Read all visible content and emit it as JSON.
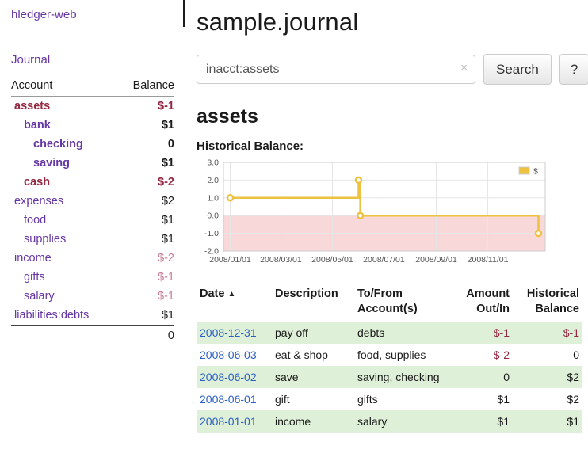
{
  "app": {
    "title": "hledger-web",
    "nav_journal": "Journal"
  },
  "colors": {
    "purple": "#6636a3",
    "blue": "#2a5fc4",
    "neg_strong": "#942741",
    "neg_light": "#c57f95",
    "row_green": "#dff0d8"
  },
  "sidebar": {
    "columns": {
      "account": "Account",
      "balance": "Balance"
    },
    "accounts": [
      {
        "name": "assets",
        "balance": "$-1",
        "depth": 1,
        "bold": true,
        "name_neg": true,
        "bal_neg": "strong"
      },
      {
        "name": "bank",
        "balance": "$1",
        "depth": 2,
        "bold": true,
        "name_neg": false,
        "bal_neg": "none"
      },
      {
        "name": "checking",
        "balance": "0",
        "depth": 3,
        "bold": true,
        "name_neg": false,
        "bal_neg": "none"
      },
      {
        "name": "saving",
        "balance": "$1",
        "depth": 3,
        "bold": true,
        "name_neg": false,
        "bal_neg": "none"
      },
      {
        "name": "cash",
        "balance": "$-2",
        "depth": 2,
        "bold": true,
        "name_neg": true,
        "bal_neg": "strong"
      },
      {
        "name": "expenses",
        "balance": "$2",
        "depth": 1,
        "bold": false,
        "name_neg": false,
        "bal_neg": "none"
      },
      {
        "name": "food",
        "balance": "$1",
        "depth": 2,
        "bold": false,
        "name_neg": false,
        "bal_neg": "none"
      },
      {
        "name": "supplies",
        "balance": "$1",
        "depth": 2,
        "bold": false,
        "name_neg": false,
        "bal_neg": "none"
      },
      {
        "name": "income",
        "balance": "$-2",
        "depth": 1,
        "bold": false,
        "name_neg": false,
        "bal_neg": "light"
      },
      {
        "name": "gifts",
        "balance": "$-1",
        "depth": 2,
        "bold": false,
        "name_neg": false,
        "bal_neg": "light"
      },
      {
        "name": "salary",
        "balance": "$-1",
        "depth": 2,
        "bold": false,
        "name_neg": false,
        "bal_neg": "light"
      },
      {
        "name": "liabilities:debts",
        "balance": "$1",
        "depth": 1,
        "bold": false,
        "name_neg": false,
        "bal_neg": "none"
      }
    ],
    "total": "0"
  },
  "main": {
    "title": "sample.journal",
    "search": {
      "value": "inacct:assets",
      "clear_icon": "×",
      "button_label": "Search",
      "help_label": "?"
    },
    "account_heading": "assets",
    "chart_label": "Historical Balance:"
  },
  "chart_data": {
    "type": "line",
    "title": "Historical Balance",
    "ylim": [
      -2,
      3
    ],
    "y_ticks": [
      3,
      2,
      1,
      0,
      -1,
      -2
    ],
    "x_domain": [
      "2007-12-24",
      "2009-01-08"
    ],
    "x_ticks": [
      {
        "date": "2008-01-01",
        "label": "2008/01/01"
      },
      {
        "date": "2008-03-01",
        "label": "2008/03/01"
      },
      {
        "date": "2008-05-01",
        "label": "2008/05/01"
      },
      {
        "date": "2008-07-01",
        "label": "2008/07/01"
      },
      {
        "date": "2008-09-01",
        "label": "2008/09/01"
      },
      {
        "date": "2008-11-01",
        "label": "2008/11/01"
      }
    ],
    "series": [
      {
        "name": "$",
        "color": "#edc240",
        "step": true,
        "points": [
          [
            "2008-01-01",
            1
          ],
          [
            "2008-06-01",
            2
          ],
          [
            "2008-06-03",
            0
          ],
          [
            "2008-12-31",
            -1
          ]
        ]
      }
    ],
    "negative_region_color": "#f8d8d8",
    "grid": true,
    "legend_position": "top-right"
  },
  "register": {
    "sort_icon": "▲",
    "columns": [
      {
        "label": "Date"
      },
      {
        "label": "Description"
      },
      {
        "label": "To/From Account(s)"
      },
      {
        "label": "Amount Out/In"
      },
      {
        "label": "Historical Balance"
      }
    ],
    "rows": [
      {
        "date": "2008-12-31",
        "description": "pay off",
        "accounts": "debts",
        "amount": "$-1",
        "amount_neg": true,
        "balance": "$-1",
        "balance_neg": true
      },
      {
        "date": "2008-06-03",
        "description": "eat & shop",
        "accounts": "food, supplies",
        "amount": "$-2",
        "amount_neg": true,
        "balance": "0",
        "balance_neg": false
      },
      {
        "date": "2008-06-02",
        "description": "save",
        "accounts": "saving, checking",
        "amount": "0",
        "amount_neg": false,
        "balance": "$2",
        "balance_neg": false
      },
      {
        "date": "2008-06-01",
        "description": "gift",
        "accounts": "gifts",
        "amount": "$1",
        "amount_neg": false,
        "balance": "$2",
        "balance_neg": false
      },
      {
        "date": "2008-01-01",
        "description": "income",
        "accounts": "salary",
        "amount": "$1",
        "amount_neg": false,
        "balance": "$1",
        "balance_neg": false
      }
    ]
  }
}
